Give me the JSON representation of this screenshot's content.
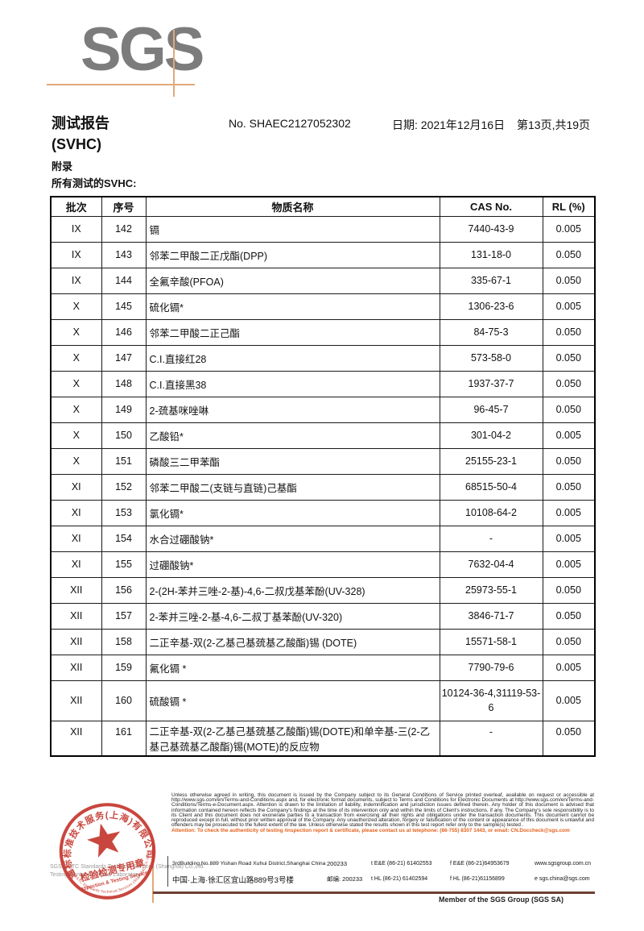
{
  "logo": {
    "text": "SGS"
  },
  "header": {
    "title_line1": "测试报告",
    "title_line2": "(SVHC)",
    "report_no": "No. SHAEC2127052302",
    "date": "日期: 2021年12月16日",
    "page_info": "第13页,共19页",
    "appendix": "附录",
    "subtitle": "所有测试的SVHC:"
  },
  "table": {
    "headers": [
      "批次",
      "序号",
      "物质名称",
      "CAS No.",
      "RL (%)"
    ],
    "rows": [
      {
        "batch": "IX",
        "no": "142",
        "name": "镉",
        "cas": "7440-43-9",
        "rl": "0.005"
      },
      {
        "batch": "IX",
        "no": "143",
        "name": "邻苯二甲酸二正戊酯(DPP)",
        "cas": "131-18-0",
        "rl": "0.050"
      },
      {
        "batch": "IX",
        "no": "144",
        "name": "全氟辛酸(PFOA)",
        "cas": "335-67-1",
        "rl": "0.050"
      },
      {
        "batch": "X",
        "no": "145",
        "name": "硫化镉*",
        "cas": "1306-23-6",
        "rl": "0.005"
      },
      {
        "batch": "X",
        "no": "146",
        "name": "邻苯二甲酸二正己酯",
        "cas": "84-75-3",
        "rl": "0.050"
      },
      {
        "batch": "X",
        "no": "147",
        "name": "C.I.直接红28",
        "cas": "573-58-0",
        "rl": "0.050"
      },
      {
        "batch": "X",
        "no": "148",
        "name": "C.I.直接黑38",
        "cas": "1937-37-7",
        "rl": "0.050"
      },
      {
        "batch": "X",
        "no": "149",
        "name": "2-巯基咪唑啉",
        "cas": "96-45-7",
        "rl": "0.050"
      },
      {
        "batch": "X",
        "no": "150",
        "name": "乙酸铅*",
        "cas": "301-04-2",
        "rl": "0.005"
      },
      {
        "batch": "X",
        "no": "151",
        "name": "磷酸三二甲苯酯",
        "cas": "25155-23-1",
        "rl": "0.050"
      },
      {
        "batch": "XI",
        "no": "152",
        "name": "邻苯二甲酸二(支链与直链)己基酯",
        "cas": "68515-50-4",
        "rl": "0.050"
      },
      {
        "batch": "XI",
        "no": "153",
        "name": "氯化镉*",
        "cas": "10108-64-2",
        "rl": "0.005"
      },
      {
        "batch": "XI",
        "no": "154",
        "name": "水合过硼酸钠*",
        "cas": "-",
        "rl": "0.005"
      },
      {
        "batch": "XI",
        "no": "155",
        "name": "过硼酸钠*",
        "cas": "7632-04-4",
        "rl": "0.005"
      },
      {
        "batch": "XII",
        "no": "156",
        "name": "2-(2H-苯并三唑-2-基)-4,6-二叔戊基苯酚(UV-328)",
        "cas": "25973-55-1",
        "rl": "0.050"
      },
      {
        "batch": "XII",
        "no": "157",
        "name": "2-苯并三唑-2-基-4,6-二叔丁基苯酚(UV-320)",
        "cas": "3846-71-7",
        "rl": "0.050"
      },
      {
        "batch": "XII",
        "no": "158",
        "name": "二正辛基-双(2-乙基己基巯基乙酸酯)锡 (DOTE)",
        "cas": "15571-58-1",
        "rl": "0.050"
      },
      {
        "batch": "XII",
        "no": "159",
        "name": "氟化镉 *",
        "cas": "7790-79-6",
        "rl": "0.005"
      },
      {
        "batch": "XII",
        "no": "160",
        "name": "硫酸镉 *",
        "cas": "10124-36-4,31119-53-6",
        "rl": "0.005"
      },
      {
        "batch": "XII",
        "no": "161",
        "name": "二正辛基-双(2-乙基己基巯基乙酸酯)锡(DOTE)和单辛基-三(2-乙基己基巯基乙酸酯)锡(MOTE)的反应物",
        "cas": "-",
        "rl": "0.050"
      }
    ]
  },
  "footer": {
    "disclaimer": "Unless otherwise agreed in writing, this document is issued by the Company subject to its General Conditions of Service printed overleaf, available on request or accessible at http://www.sgs.com/en/Terms-and-Conditions.aspx and, for electronic format documents, subject to Terms and Conditions for Electronic Documents at http://www.sgs.com/en/Terms-and-Conditions/Terms-e-Document.aspx. Attention is drawn to the limitation of liability, indemnification and jurisdiction issues defined therein. Any holder of this document is advised that information contained hereon reflects the Company's findings at the time of its intervention only and within the limits of Client's instructions, if any. The Company's sole responsibility is to its Client and this document does not exonerate parties to a transaction from exercising all their rights and obligations under the transaction documents. This document cannot be reproduced except in full, without prior written approval of the Company. Any unauthorized alteration, forgery or falsification of the content or appearance of this document is unlawful and offenders may be prosecuted to the fullest extent of the law. Unless otherwise stated the results shown in this test report refer only to the sample(s) tested .",
    "attention": "Attention: To check the authenticity of testing /inspection report & certificate, please contact us at telephone: (86-755) 8307 1443, or email: CN.Doccheck@sgs.com",
    "address_en": "3rdBuilding,No.889 Yishan Road Xuhui District,Shanghai China",
    "postcode_en": "200233",
    "address_cn": "中国·上海·徐汇区宜山路889号3号楼",
    "postcode_cn": "邮编: 200233",
    "tel1": "t E&E (86-21) 61402553",
    "fax1": "f E&E (86-21)64953679",
    "web": "www.sgsgroup.com.cn",
    "tel2": "t HL (86-21) 61402594",
    "fax2": "f HL (86-21)61156899",
    "email": "e  sgs.china@sgs.com",
    "member_line": "Member of the SGS Group (SGS SA)",
    "company_gray_line1": "SGS-CSTC Standards Technical Services (Shanghai) Co.,Ltd.",
    "company_gray_line2": "Testing Center-Chemical Laboratory"
  },
  "stamp": {
    "ring_text_cn": "通标标准技术服务(上海)有限公司",
    "ring_text_en": "SGS-CSTC Standards Technical Services (Shanghai) Co.,Ltd.",
    "center_line1": "检验检测专用章",
    "center_line2": "Inspection & Testing Services"
  },
  "colors": {
    "logo-gray": "#7c7c7c",
    "accent-orange": "#e2a878",
    "attention-orange": "#e4611c",
    "stamp-red": "#c5372e",
    "rule-brown": "#6e4034"
  }
}
